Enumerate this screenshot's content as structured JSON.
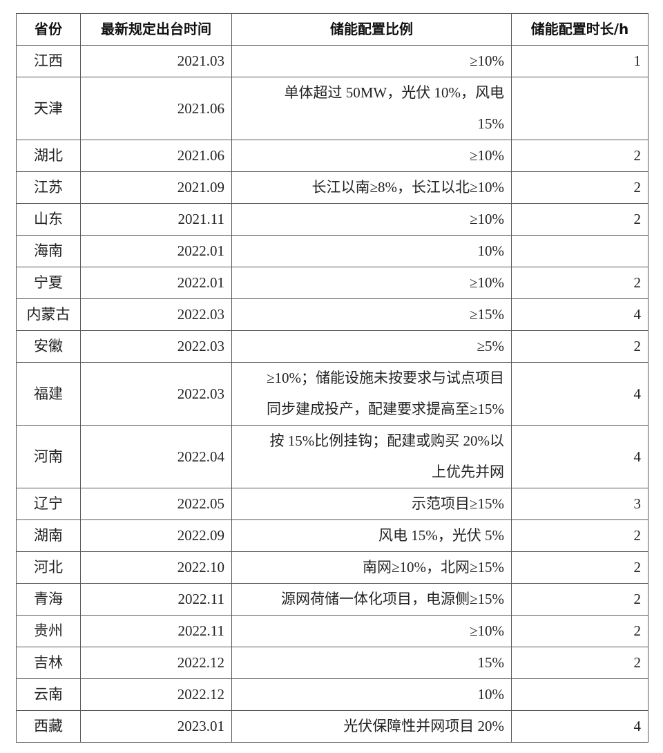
{
  "table": {
    "headers": [
      "省份",
      "最新规定出台时间",
      "储能配置比例",
      "储能配置时长/h"
    ],
    "rows": [
      {
        "province": "江西",
        "date": "2021.03",
        "ratio": "≥10%",
        "duration": "1"
      },
      {
        "province": "天津",
        "date": "2021.06",
        "ratio": "单体超过 50MW，光伏 10%，风电\n15%",
        "duration": ""
      },
      {
        "province": "湖北",
        "date": "2021.06",
        "ratio": "≥10%",
        "duration": "2"
      },
      {
        "province": "江苏",
        "date": "2021.09",
        "ratio": "长江以南≥8%，长江以北≥10%",
        "duration": "2"
      },
      {
        "province": "山东",
        "date": "2021.11",
        "ratio": "≥10%",
        "duration": "2"
      },
      {
        "province": "海南",
        "date": "2022.01",
        "ratio": "10%",
        "duration": ""
      },
      {
        "province": "宁夏",
        "date": "2022.01",
        "ratio": "≥10%",
        "duration": "2"
      },
      {
        "province": "内蒙古",
        "date": "2022.03",
        "ratio": "≥15%",
        "duration": "4"
      },
      {
        "province": "安徽",
        "date": "2022.03",
        "ratio": "≥5%",
        "duration": "2"
      },
      {
        "province": "福建",
        "date": "2022.03",
        "ratio": "≥10%；储能设施未按要求与试点项目\n同步建成投产，配建要求提高至≥15%",
        "duration": "4"
      },
      {
        "province": "河南",
        "date": "2022.04",
        "ratio": "按 15%比例挂钩；配建或购买 20%以\n上优先并网",
        "duration": "4"
      },
      {
        "province": "辽宁",
        "date": "2022.05",
        "ratio": "示范项目≥15%",
        "duration": "3"
      },
      {
        "province": "湖南",
        "date": "2022.09",
        "ratio": "风电 15%，光伏 5%",
        "duration": "2"
      },
      {
        "province": "河北",
        "date": "2022.10",
        "ratio": "南网≥10%，北网≥15%",
        "duration": "2"
      },
      {
        "province": "青海",
        "date": "2022.11",
        "ratio": "源网荷储一体化项目，电源侧≥15%",
        "duration": "2"
      },
      {
        "province": "贵州",
        "date": "2022.11",
        "ratio": "≥10%",
        "duration": "2"
      },
      {
        "province": "吉林",
        "date": "2022.12",
        "ratio": "15%",
        "duration": "2"
      },
      {
        "province": "云南",
        "date": "2022.12",
        "ratio": "10%",
        "duration": ""
      },
      {
        "province": "西藏",
        "date": "2023.01",
        "ratio": "光伏保障性并网项目 20%",
        "duration": "4"
      }
    ]
  }
}
